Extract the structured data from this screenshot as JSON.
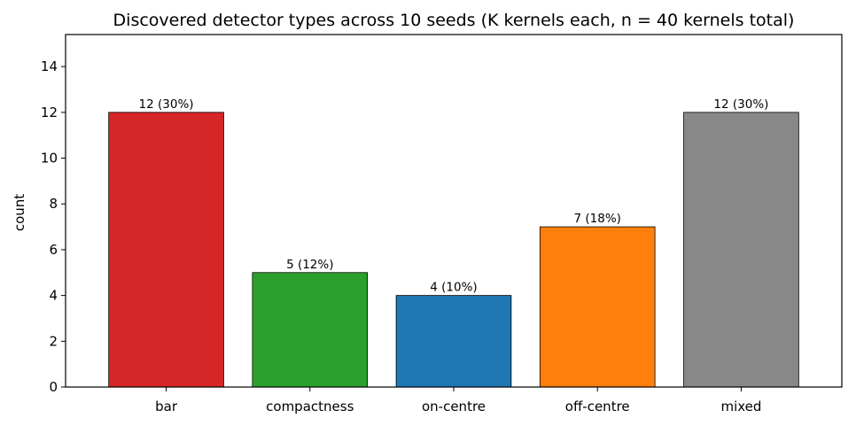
{
  "chart_data": {
    "type": "bar",
    "title": "Discovered detector types across 10 seeds  (K kernels each, n = 40 kernels total)",
    "xlabel": "",
    "ylabel": "count",
    "categories": [
      "bar",
      "compactness",
      "on-centre",
      "off-centre",
      "mixed"
    ],
    "values": [
      12,
      5,
      4,
      7,
      12
    ],
    "value_labels": [
      "12  (30%)",
      "5  (12%)",
      "4  (10%)",
      "7  (18%)",
      "12  (30%)"
    ],
    "colors": [
      "#d62728",
      "#2ca02c",
      "#1f77b4",
      "#ff7f0e",
      "#888888"
    ],
    "ylim": [
      0,
      15.4
    ],
    "yticks": [
      0,
      2,
      4,
      6,
      8,
      10,
      12,
      14
    ],
    "grid": false,
    "legend": "none"
  }
}
